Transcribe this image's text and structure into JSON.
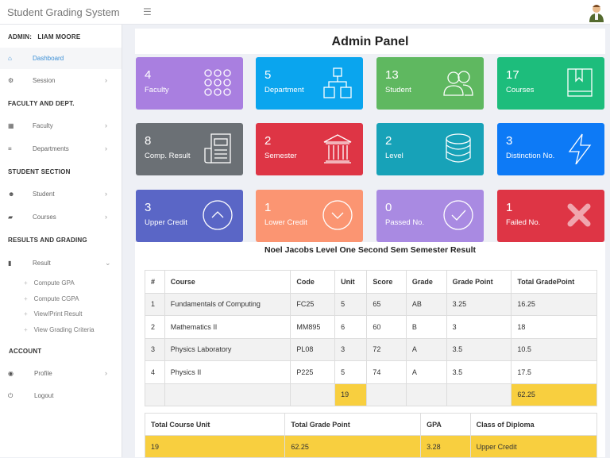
{
  "app": {
    "title": "Student Grading System"
  },
  "sidebar": {
    "admin_label": "ADMIN:",
    "admin_name": "LIAM MOORE",
    "sections": [
      "FACULTY AND DEPT.",
      "STUDENT SECTION",
      "RESULTS AND GRADING",
      "ACCOUNT"
    ],
    "items": [
      {
        "label": "Dashboard"
      },
      {
        "label": "Session"
      },
      {
        "label": "Faculty"
      },
      {
        "label": "Departments"
      },
      {
        "label": "Student"
      },
      {
        "label": "Courses"
      },
      {
        "label": "Result"
      },
      {
        "label": "Profile"
      },
      {
        "label": "Logout"
      }
    ],
    "result_sub": [
      "Compute GPA",
      "Compute CGPA",
      "View/Print Result",
      "View Grading Criteria"
    ]
  },
  "main": {
    "title": "Admin Panel"
  },
  "cards": [
    {
      "value": "4",
      "label": "Faculty",
      "color": "#a97fe0",
      "icon": "grid-dots-icon"
    },
    {
      "value": "5",
      "label": "Department",
      "color": "#0aa5ee",
      "icon": "sitemap-icon"
    },
    {
      "value": "13",
      "label": "Student",
      "color": "#5fb860",
      "icon": "users-icon"
    },
    {
      "value": "17",
      "label": "Courses",
      "color": "#1dbd7c",
      "icon": "book-icon"
    },
    {
      "value": "8",
      "label": "Comp. Result",
      "color": "#6b7075",
      "icon": "document-icon"
    },
    {
      "value": "2",
      "label": "Semester",
      "color": "#de3545",
      "icon": "institution-icon"
    },
    {
      "value": "2",
      "label": "Level",
      "color": "#17a2b8",
      "icon": "database-icon"
    },
    {
      "value": "3",
      "label": "Distinction No.",
      "color": "#0d7af6",
      "icon": "lightning-icon"
    },
    {
      "value": "3",
      "label": "Upper Credit",
      "color": "#5a66c6",
      "icon": "chevron-up-circle-icon"
    },
    {
      "value": "1",
      "label": "Lower Credit",
      "color": "#fb9572",
      "icon": "chevron-down-circle-icon"
    },
    {
      "value": "0",
      "label": "Passed No.",
      "color": "#a98ae2",
      "icon": "check-circle-icon"
    },
    {
      "value": "1",
      "label": "Failed No.",
      "color": "#de3545",
      "icon": "x-icon"
    }
  ],
  "result": {
    "title": "Noel Jacobs Level One Second Sem Semester Result",
    "headers": [
      "#",
      "Course",
      "Code",
      "Unit",
      "Score",
      "Grade",
      "Grade Point",
      "Total GradePoint"
    ],
    "rows": [
      [
        "1",
        "Fundamentals of Computing",
        "FC25",
        "5",
        "65",
        "AB",
        "3.25",
        "16.25"
      ],
      [
        "2",
        "Mathematics II",
        "MM895",
        "6",
        "60",
        "B",
        "3",
        "18"
      ],
      [
        "3",
        "Physics Laboratory",
        "PL08",
        "3",
        "72",
        "A",
        "3.5",
        "10.5"
      ],
      [
        "4",
        "Physics II",
        "P225",
        "5",
        "74",
        "A",
        "3.5",
        "17.5"
      ]
    ],
    "total_unit": "19",
    "total_gp": "62.25",
    "summary_headers": [
      "Total Course Unit",
      "Total Grade Point",
      "GPA",
      "Class of Diploma"
    ],
    "summary": [
      "19",
      "62.25",
      "3.28",
      "Upper Credit"
    ]
  }
}
